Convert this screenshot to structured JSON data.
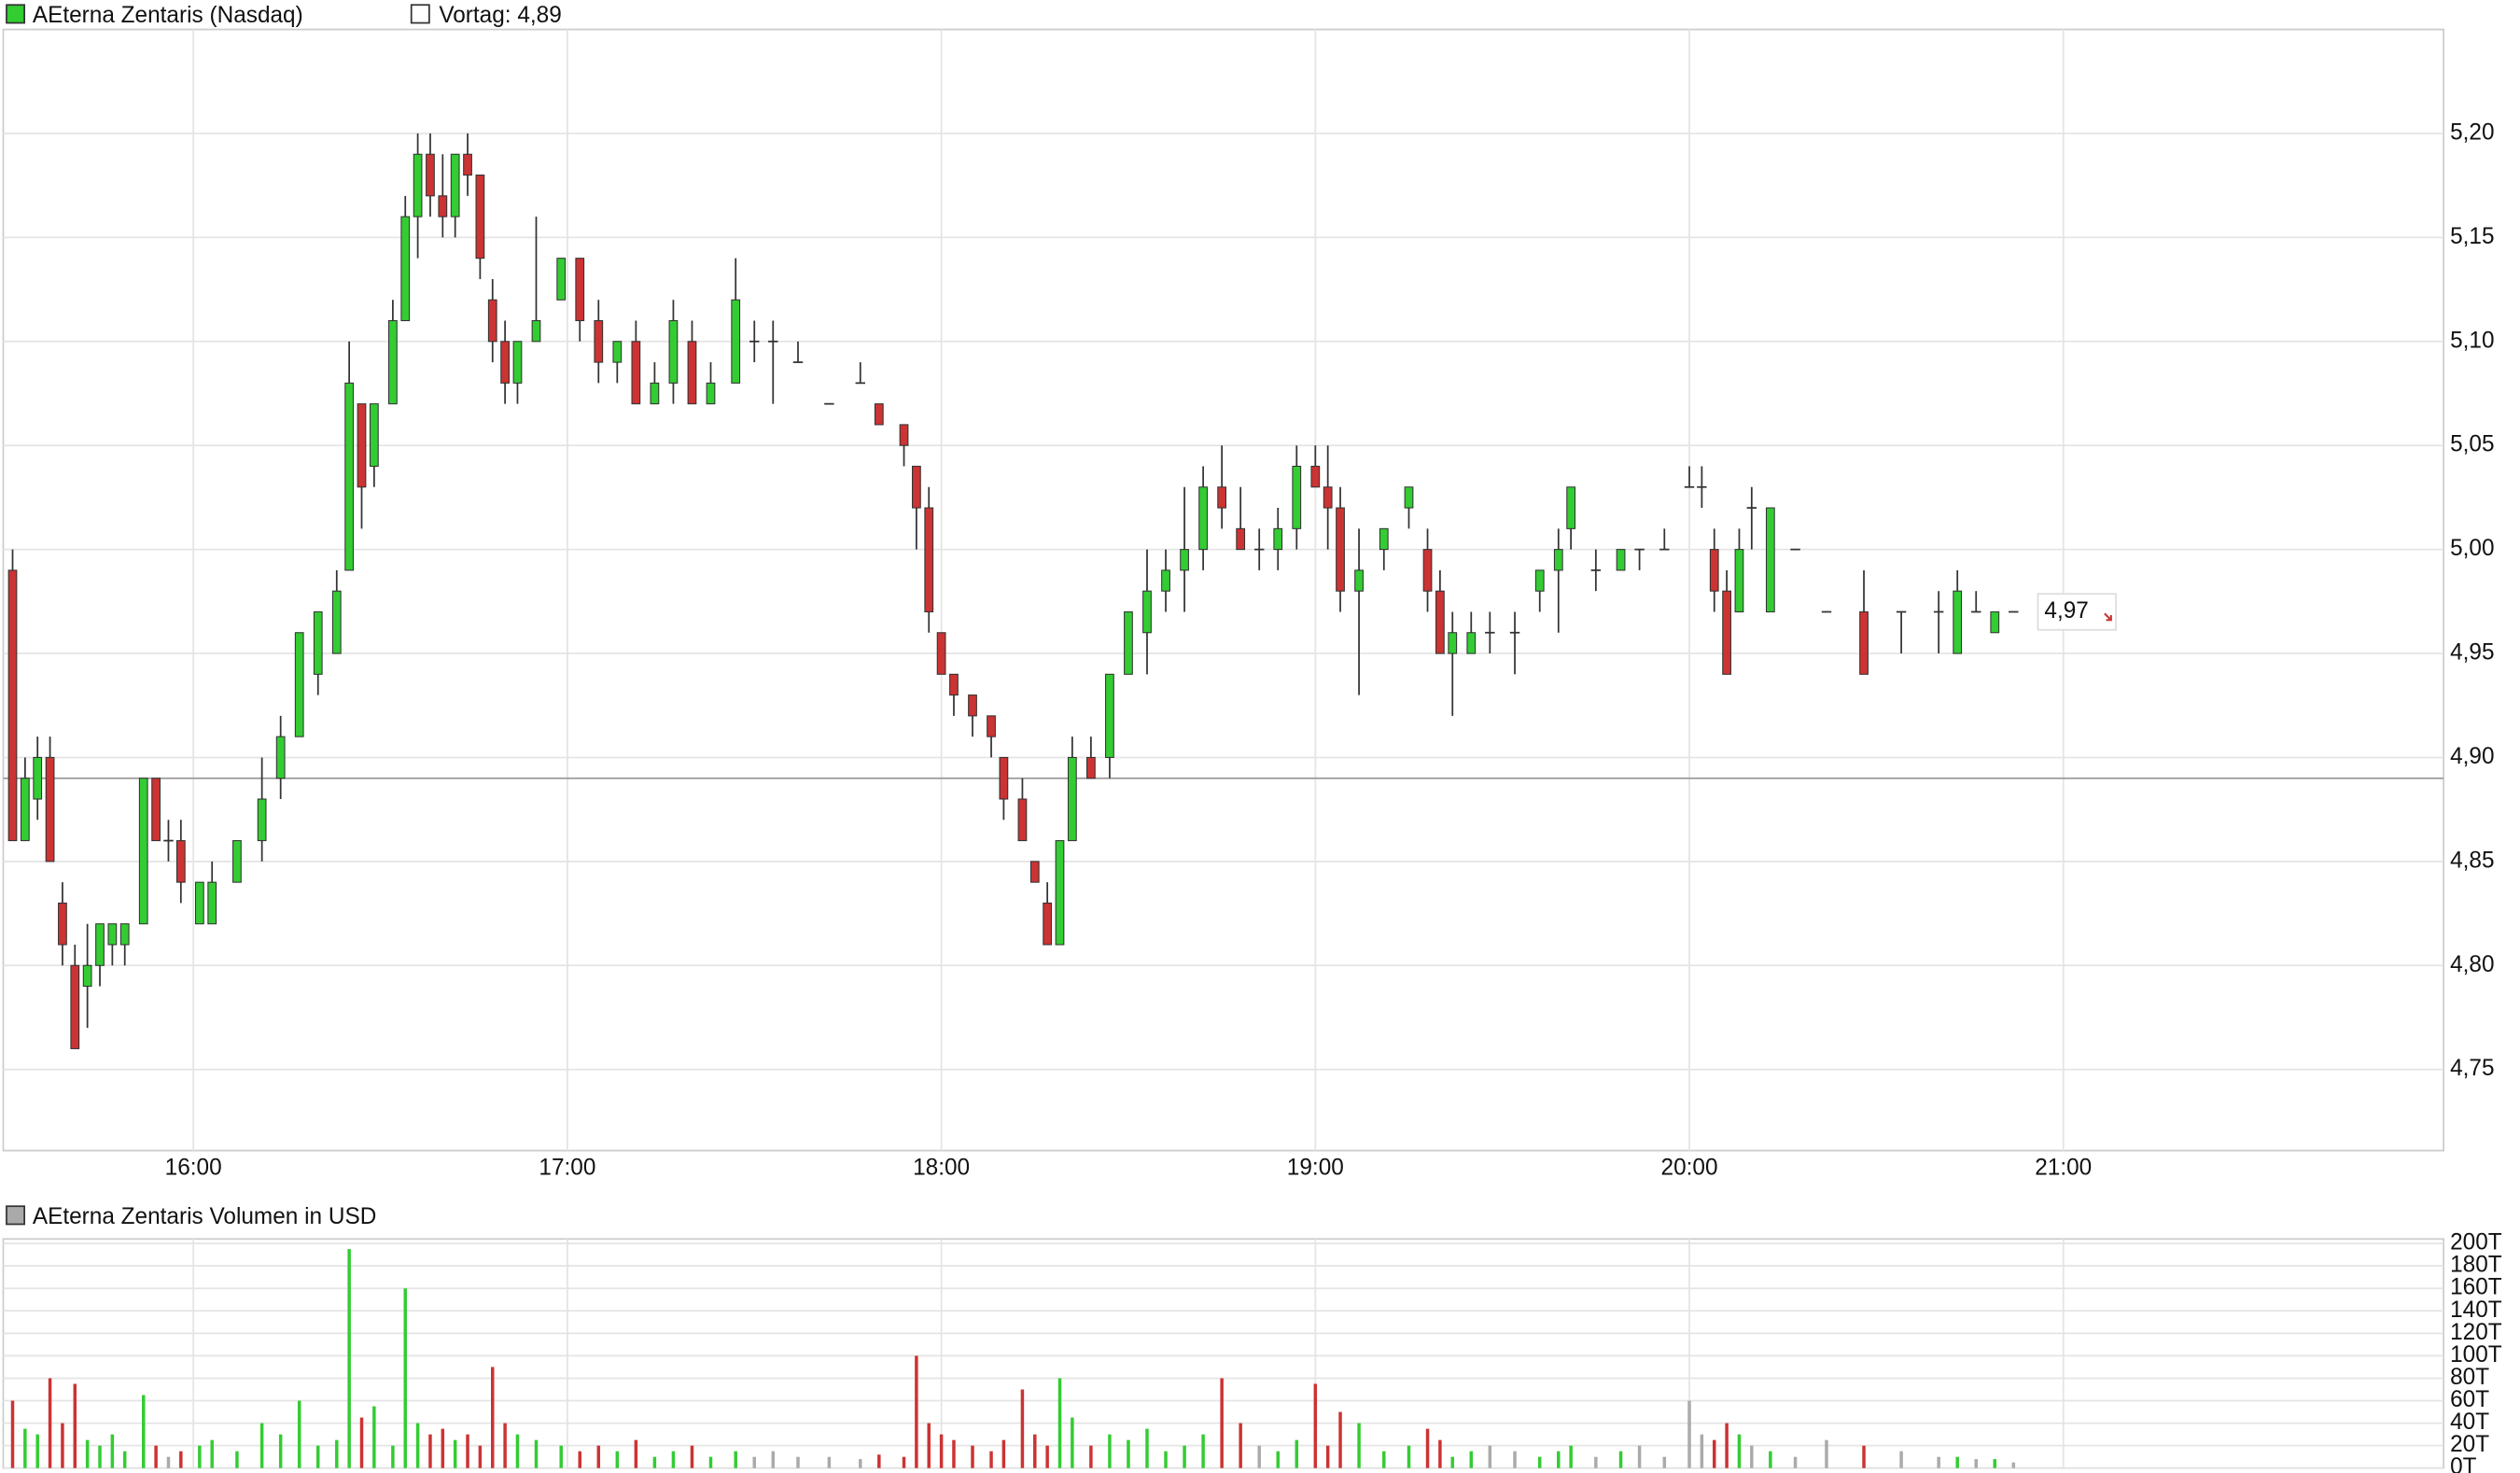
{
  "chart_data": [
    {
      "type": "candlestick",
      "title": "AEterna Zentaris (Nasdaq)",
      "x": [
        931,
        933,
        935,
        937,
        939,
        941,
        943,
        945,
        947,
        949,
        952,
        954,
        956,
        958,
        961,
        963,
        967,
        971,
        974,
        977,
        980,
        983,
        985,
        987,
        989,
        992,
        994,
        996,
        998,
        1000,
        1002,
        1004,
        1006,
        1008,
        1010,
        1012,
        1015,
        1019,
        1022,
        1025,
        1028,
        1031,
        1034,
        1037,
        1040,
        1043,
        1047,
        1050,
        1053,
        1057,
        1062,
        1067,
        1070,
        1074,
        1076,
        1078,
        1080,
        1082,
        1085,
        1088,
        1090,
        1093,
        1095,
        1097,
        1099,
        1101,
        1104,
        1107,
        1110,
        1113,
        1116,
        1119,
        1122,
        1125,
        1128,
        1131,
        1134,
        1137,
        1140,
        1142,
        1144,
        1147,
        1151,
        1155,
        1158,
        1160,
        1162,
        1165,
        1168,
        1172,
        1176,
        1179,
        1181,
        1185,
        1189,
        1192,
        1196,
        1200,
        1202,
        1204,
        1206,
        1208,
        1210,
        1213,
        1217,
        1222,
        1228,
        1234,
        1240,
        1243,
        1246,
        1249,
        1252
      ],
      "ohlc": [
        [
          4.99,
          5.0,
          4.86,
          4.86
        ],
        [
          4.86,
          4.9,
          4.86,
          4.89
        ],
        [
          4.88,
          4.91,
          4.87,
          4.9
        ],
        [
          4.9,
          4.91,
          4.85,
          4.85
        ],
        [
          4.83,
          4.84,
          4.8,
          4.81
        ],
        [
          4.8,
          4.81,
          4.76,
          4.76
        ],
        [
          4.79,
          4.82,
          4.77,
          4.8
        ],
        [
          4.8,
          4.82,
          4.79,
          4.82
        ],
        [
          4.81,
          4.82,
          4.8,
          4.82
        ],
        [
          4.81,
          4.82,
          4.8,
          4.82
        ],
        [
          4.82,
          4.89,
          4.82,
          4.89
        ],
        [
          4.89,
          4.89,
          4.86,
          4.86
        ],
        [
          4.86,
          4.87,
          4.85,
          4.86
        ],
        [
          4.86,
          4.87,
          4.83,
          4.84
        ],
        [
          4.82,
          4.84,
          4.82,
          4.84
        ],
        [
          4.82,
          4.85,
          4.82,
          4.84
        ],
        [
          4.84,
          4.86,
          4.84,
          4.86
        ],
        [
          4.86,
          4.9,
          4.85,
          4.88
        ],
        [
          4.89,
          4.92,
          4.88,
          4.91
        ],
        [
          4.91,
          4.96,
          4.91,
          4.96
        ],
        [
          4.94,
          4.97,
          4.93,
          4.97
        ],
        [
          4.95,
          4.99,
          4.95,
          4.98
        ],
        [
          4.99,
          5.1,
          4.99,
          5.08
        ],
        [
          5.07,
          5.07,
          5.01,
          5.03
        ],
        [
          5.04,
          5.07,
          5.03,
          5.07
        ],
        [
          5.07,
          5.12,
          5.07,
          5.11
        ],
        [
          5.11,
          5.17,
          5.11,
          5.16
        ],
        [
          5.16,
          5.2,
          5.14,
          5.19
        ],
        [
          5.19,
          5.2,
          5.16,
          5.17
        ],
        [
          5.17,
          5.19,
          5.15,
          5.16
        ],
        [
          5.16,
          5.19,
          5.15,
          5.19
        ],
        [
          5.19,
          5.2,
          5.17,
          5.18
        ],
        [
          5.18,
          5.18,
          5.13,
          5.14
        ],
        [
          5.12,
          5.13,
          5.09,
          5.1
        ],
        [
          5.1,
          5.11,
          5.07,
          5.08
        ],
        [
          5.08,
          5.1,
          5.07,
          5.1
        ],
        [
          5.1,
          5.16,
          5.1,
          5.11
        ],
        [
          5.12,
          5.14,
          5.12,
          5.14
        ],
        [
          5.14,
          5.14,
          5.1,
          5.11
        ],
        [
          5.11,
          5.12,
          5.08,
          5.09
        ],
        [
          5.09,
          5.1,
          5.08,
          5.1
        ],
        [
          5.1,
          5.11,
          5.07,
          5.07
        ],
        [
          5.07,
          5.09,
          5.07,
          5.08
        ],
        [
          5.08,
          5.12,
          5.07,
          5.11
        ],
        [
          5.1,
          5.11,
          5.07,
          5.07
        ],
        [
          5.07,
          5.09,
          5.07,
          5.08
        ],
        [
          5.08,
          5.14,
          5.08,
          5.12
        ],
        [
          5.1,
          5.11,
          5.09,
          5.1
        ],
        [
          5.1,
          5.11,
          5.07,
          5.1
        ],
        [
          5.09,
          5.1,
          5.09,
          5.09
        ],
        [
          5.07,
          5.07,
          5.07,
          5.07
        ],
        [
          5.08,
          5.09,
          5.08,
          5.08
        ],
        [
          5.07,
          5.07,
          5.06,
          5.06
        ],
        [
          5.06,
          5.06,
          5.04,
          5.05
        ],
        [
          5.04,
          5.04,
          5.0,
          5.02
        ],
        [
          5.02,
          5.03,
          4.96,
          4.97
        ],
        [
          4.96,
          4.96,
          4.94,
          4.94
        ],
        [
          4.94,
          4.94,
          4.92,
          4.93
        ],
        [
          4.93,
          4.93,
          4.91,
          4.92
        ],
        [
          4.92,
          4.92,
          4.9,
          4.91
        ],
        [
          4.9,
          4.9,
          4.87,
          4.88
        ],
        [
          4.88,
          4.89,
          4.86,
          4.86
        ],
        [
          4.85,
          4.85,
          4.84,
          4.84
        ],
        [
          4.83,
          4.84,
          4.81,
          4.81
        ],
        [
          4.81,
          4.86,
          4.81,
          4.86
        ],
        [
          4.86,
          4.91,
          4.86,
          4.9
        ],
        [
          4.9,
          4.91,
          4.89,
          4.89
        ],
        [
          4.9,
          4.94,
          4.89,
          4.94
        ],
        [
          4.94,
          4.97,
          4.94,
          4.97
        ],
        [
          4.96,
          5.0,
          4.94,
          4.98
        ],
        [
          4.98,
          5.0,
          4.97,
          4.99
        ],
        [
          4.99,
          5.03,
          4.97,
          5.0
        ],
        [
          5.0,
          5.04,
          4.99,
          5.03
        ],
        [
          5.03,
          5.05,
          5.01,
          5.02
        ],
        [
          5.01,
          5.03,
          5.0,
          5.0
        ],
        [
          5.0,
          5.01,
          4.99,
          5.0
        ],
        [
          5.0,
          5.02,
          4.99,
          5.01
        ],
        [
          5.01,
          5.05,
          5.0,
          5.04
        ],
        [
          5.04,
          5.05,
          5.03,
          5.03
        ],
        [
          5.03,
          5.05,
          5.0,
          5.02
        ],
        [
          5.02,
          5.03,
          4.97,
          4.98
        ],
        [
          4.98,
          5.01,
          4.93,
          4.99
        ],
        [
          5.0,
          5.01,
          4.99,
          5.01
        ],
        [
          5.02,
          5.03,
          5.01,
          5.03
        ],
        [
          5.0,
          5.01,
          4.97,
          4.98
        ],
        [
          4.98,
          4.99,
          4.95,
          4.95
        ],
        [
          4.95,
          4.97,
          4.92,
          4.96
        ],
        [
          4.95,
          4.97,
          4.95,
          4.96
        ],
        [
          4.96,
          4.97,
          4.95,
          4.96
        ],
        [
          4.96,
          4.97,
          4.94,
          4.96
        ],
        [
          4.98,
          4.99,
          4.97,
          4.99
        ],
        [
          4.99,
          5.01,
          4.96,
          5.0
        ],
        [
          5.01,
          5.03,
          5.0,
          5.03
        ],
        [
          4.99,
          5.0,
          4.98,
          4.99
        ],
        [
          4.99,
          5.0,
          4.99,
          5.0
        ],
        [
          5.0,
          5.0,
          4.99,
          5.0
        ],
        [
          5.0,
          5.01,
          5.0,
          5.0
        ],
        [
          5.03,
          5.04,
          5.03,
          5.03
        ],
        [
          5.03,
          5.04,
          5.02,
          5.03
        ],
        [
          5.0,
          5.01,
          4.97,
          4.98
        ],
        [
          4.98,
          4.99,
          4.94,
          4.94
        ],
        [
          4.97,
          5.01,
          4.97,
          5.0
        ],
        [
          5.02,
          5.03,
          5.0,
          5.02
        ],
        [
          4.97,
          5.02,
          4.97,
          5.02
        ],
        [
          5.0,
          5.0,
          5.0,
          5.0
        ],
        [
          4.97,
          4.97,
          4.97,
          4.97
        ],
        [
          4.97,
          4.99,
          4.94,
          4.94
        ],
        [
          4.97,
          4.97,
          4.95,
          4.97
        ],
        [
          4.97,
          4.98,
          4.95,
          4.97
        ],
        [
          4.95,
          4.99,
          4.95,
          4.98
        ],
        [
          4.97,
          4.98,
          4.97,
          4.97
        ],
        [
          4.96,
          4.97,
          4.96,
          4.97
        ],
        [
          4.97,
          4.97,
          4.97,
          4.97
        ]
      ],
      "xlim": [
        929.5,
        1321
      ],
      "xticks": [
        {
          "value": 960,
          "label": "16:00"
        },
        {
          "value": 1020,
          "label": "17:00"
        },
        {
          "value": 1080,
          "label": "18:00"
        },
        {
          "value": 1140,
          "label": "19:00"
        },
        {
          "value": 1200,
          "label": "20:00"
        },
        {
          "value": 1260,
          "label": "21:00"
        }
      ],
      "ylim": [
        4.711,
        5.25
      ],
      "yticks": [
        {
          "value": 4.75,
          "label": "4,75"
        },
        {
          "value": 4.8,
          "label": "4,80"
        },
        {
          "value": 4.85,
          "label": "4,85"
        },
        {
          "value": 4.9,
          "label": "4,90"
        },
        {
          "value": 4.95,
          "label": "4,95"
        },
        {
          "value": 5.0,
          "label": "5,00"
        },
        {
          "value": 5.05,
          "label": "5,05"
        },
        {
          "value": 5.1,
          "label": "5,10"
        },
        {
          "value": 5.15,
          "label": "5,15"
        },
        {
          "value": 5.2,
          "label": "5,20"
        }
      ],
      "previous_close": {
        "value": 4.89,
        "label": "Vortag: 4,89"
      },
      "last_price": {
        "value": 4.97,
        "label": "4,97"
      },
      "up_color": "#33cc33",
      "down_color": "#cc3333",
      "grid": true
    },
    {
      "type": "bar",
      "title": "AEterna Zentaris Volumen in USD",
      "x": [
        931,
        933,
        935,
        937,
        939,
        941,
        943,
        945,
        947,
        949,
        952,
        954,
        956,
        958,
        961,
        963,
        967,
        971,
        974,
        977,
        980,
        983,
        985,
        987,
        989,
        992,
        994,
        996,
        998,
        1000,
        1002,
        1004,
        1006,
        1008,
        1010,
        1012,
        1015,
        1019,
        1022,
        1025,
        1028,
        1031,
        1034,
        1037,
        1040,
        1043,
        1047,
        1050,
        1053,
        1057,
        1062,
        1067,
        1070,
        1074,
        1076,
        1078,
        1080,
        1082,
        1085,
        1088,
        1090,
        1093,
        1095,
        1097,
        1099,
        1101,
        1104,
        1107,
        1110,
        1113,
        1116,
        1119,
        1122,
        1125,
        1128,
        1131,
        1134,
        1137,
        1140,
        1142,
        1144,
        1147,
        1151,
        1155,
        1158,
        1160,
        1162,
        1165,
        1168,
        1172,
        1176,
        1179,
        1181,
        1185,
        1189,
        1192,
        1196,
        1200,
        1202,
        1204,
        1206,
        1208,
        1210,
        1213,
        1217,
        1222,
        1228,
        1234,
        1240,
        1243,
        1246,
        1249,
        1252
      ],
      "values": [
        60,
        35,
        30,
        80,
        40,
        75,
        25,
        20,
        30,
        15,
        65,
        20,
        10,
        15,
        20,
        25,
        15,
        40,
        30,
        60,
        20,
        25,
        195,
        45,
        55,
        20,
        160,
        40,
        30,
        35,
        25,
        30,
        20,
        90,
        40,
        30,
        25,
        20,
        15,
        20,
        15,
        25,
        10,
        15,
        20,
        10,
        15,
        10,
        15,
        10,
        10,
        8,
        12,
        10,
        100,
        40,
        30,
        25,
        20,
        15,
        25,
        70,
        30,
        20,
        80,
        45,
        20,
        30,
        25,
        35,
        15,
        20,
        30,
        80,
        40,
        20,
        15,
        25,
        75,
        20,
        50,
        40,
        15,
        20,
        35,
        25,
        10,
        15,
        20,
        15,
        10,
        15,
        20,
        10,
        15,
        20,
        10,
        60,
        30,
        25,
        40,
        30,
        20,
        15,
        10,
        25,
        20,
        15,
        10,
        10,
        8,
        8,
        5
      ],
      "xlim": [
        929.5,
        1321
      ],
      "ylim": [
        0,
        204
      ],
      "yticks": [
        {
          "value": 0,
          "label": "0T"
        },
        {
          "value": 20,
          "label": "20T"
        },
        {
          "value": 40,
          "label": "40T"
        },
        {
          "value": 60,
          "label": "60T"
        },
        {
          "value": 80,
          "label": "80T"
        },
        {
          "value": 100,
          "label": "100T"
        },
        {
          "value": 120,
          "label": "120T"
        },
        {
          "value": 140,
          "label": "140T"
        },
        {
          "value": 160,
          "label": "160T"
        },
        {
          "value": 180,
          "label": "180T"
        },
        {
          "value": 200,
          "label": "200T"
        }
      ],
      "up_color": "#33cc33",
      "down_color": "#cc3333",
      "flat_color": "#aaaaaa",
      "grid": true
    }
  ]
}
